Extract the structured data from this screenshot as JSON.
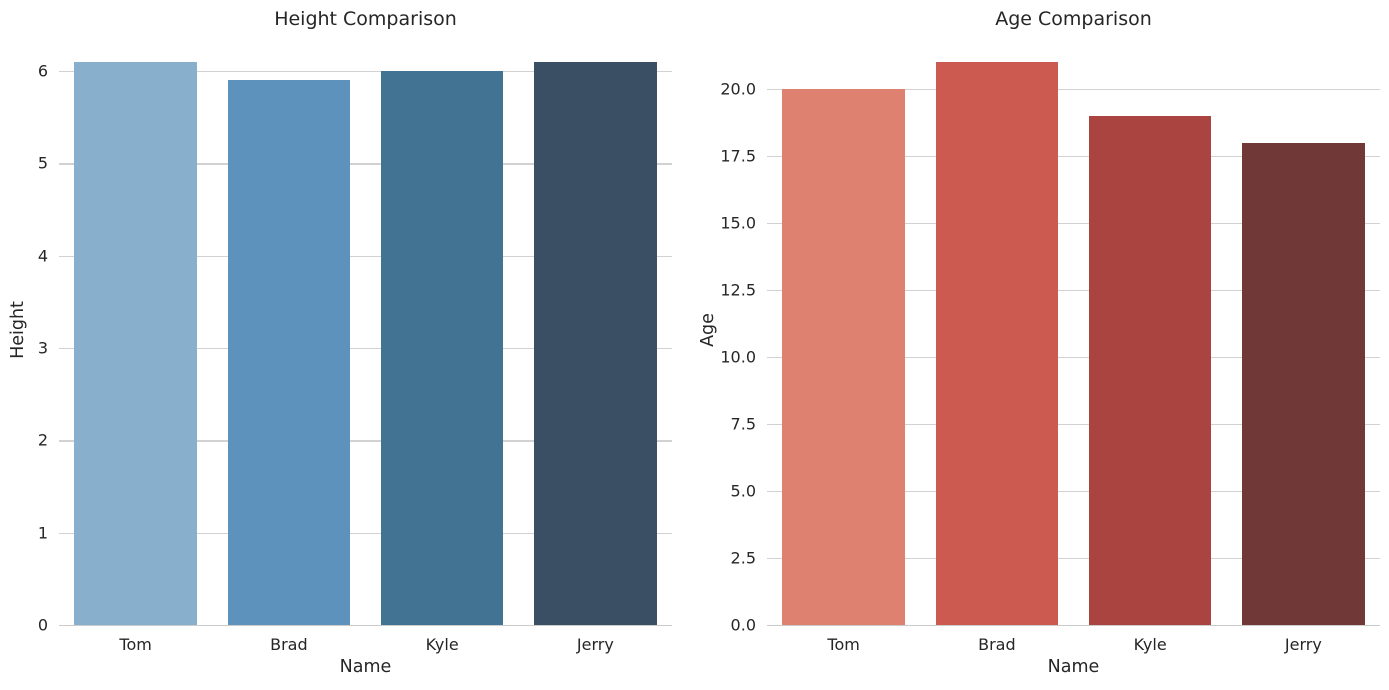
{
  "figure": {
    "background": "#ffffff",
    "text_color": "#262626",
    "grid_color": "#d2d2d2",
    "spine_color": "#cbcbcb"
  },
  "chart_data": [
    {
      "type": "bar",
      "title": "Height Comparison",
      "xlabel": "Name",
      "ylabel": "Height",
      "categories": [
        "Tom",
        "Brad",
        "Kyle",
        "Jerry"
      ],
      "values": [
        6.1,
        5.9,
        6.0,
        6.1
      ],
      "bar_colors": [
        "#88b0cd",
        "#5d92bc",
        "#427392",
        "#3a4f64"
      ],
      "ylim": [
        0,
        6.4
      ],
      "yticks": [
        0,
        1,
        2,
        3,
        4,
        5,
        6
      ],
      "ytick_labels": [
        "0",
        "1",
        "2",
        "3",
        "4",
        "5",
        "6"
      ],
      "grid": true,
      "legend_position": "none"
    },
    {
      "type": "bar",
      "title": "Age Comparison",
      "xlabel": "Name",
      "ylabel": "Age",
      "categories": [
        "Tom",
        "Brad",
        "Kyle",
        "Jerry"
      ],
      "values": [
        20,
        21,
        19,
        18
      ],
      "bar_colors": [
        "#df8170",
        "#cd5a50",
        "#a94440",
        "#703937"
      ],
      "ylim": [
        0,
        22.05
      ],
      "yticks": [
        0,
        2.5,
        5,
        7.5,
        10,
        12.5,
        15,
        17.5,
        20
      ],
      "ytick_labels": [
        "0.0",
        "2.5",
        "5.0",
        "7.5",
        "10.0",
        "12.5",
        "15.0",
        "17.5",
        "20.0"
      ],
      "grid": true,
      "legend_position": "none"
    }
  ]
}
